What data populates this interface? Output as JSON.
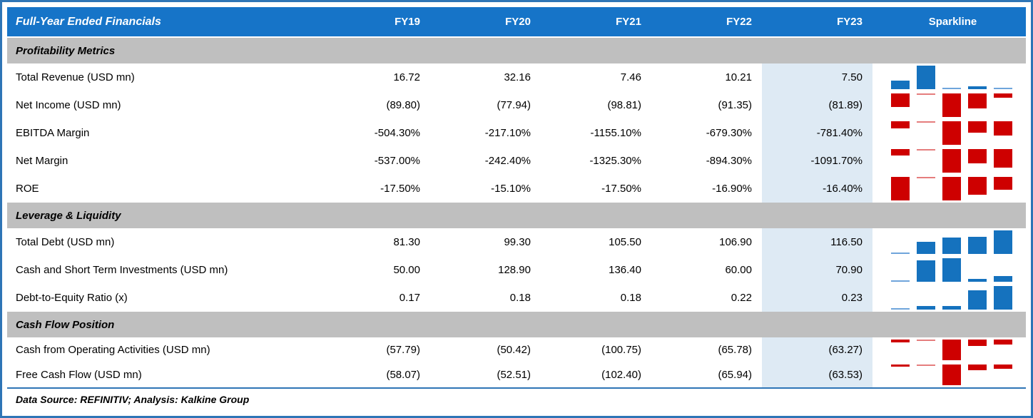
{
  "title": "Full-Year Ended Financials",
  "columns": [
    "FY19",
    "FY20",
    "FY21",
    "FY22",
    "FY23"
  ],
  "sparkline_header": "Sparkline",
  "highlight_column": "FY23",
  "sections": [
    {
      "title": "Profitability Metrics",
      "rows": [
        {
          "label": "Total Revenue (USD mn)",
          "values": [
            "16.72",
            "32.16",
            "7.46",
            "10.21",
            "7.50"
          ],
          "numeric": [
            16.72,
            32.16,
            7.46,
            10.21,
            7.5
          ]
        },
        {
          "label": "Net Income (USD mn)",
          "values": [
            "(89.80)",
            "(77.94)",
            "(98.81)",
            "(91.35)",
            "(81.89)"
          ],
          "numeric": [
            -89.8,
            -77.94,
            -98.81,
            -91.35,
            -81.89
          ]
        },
        {
          "label": "EBITDA Margin",
          "values": [
            "-504.30%",
            "-217.10%",
            "-1155.10%",
            "-679.30%",
            "-781.40%"
          ],
          "numeric": [
            -504.3,
            -217.1,
            -1155.1,
            -679.3,
            -781.4
          ]
        },
        {
          "label": "Net Margin",
          "values": [
            "-537.00%",
            "-242.40%",
            "-1325.30%",
            "-894.30%",
            "-1091.70%"
          ],
          "numeric": [
            -537.0,
            -242.4,
            -1325.3,
            -894.3,
            -1091.7
          ]
        },
        {
          "label": "ROE",
          "values": [
            "-17.50%",
            "-15.10%",
            "-17.50%",
            "-16.90%",
            "-16.40%"
          ],
          "numeric": [
            -17.5,
            -15.1,
            -17.5,
            -16.9,
            -16.4
          ]
        }
      ]
    },
    {
      "title": "Leverage & Liquidity",
      "rows": [
        {
          "label": "Total Debt (USD mn)",
          "values": [
            "81.30",
            "99.30",
            "105.50",
            "106.90",
            "116.50"
          ],
          "numeric": [
            81.3,
            99.3,
            105.5,
            106.9,
            116.5
          ]
        },
        {
          "label": "Cash and Short Term Investments (USD mn)",
          "values": [
            "50.00",
            "128.90",
            "136.40",
            "60.00",
            "70.90"
          ],
          "numeric": [
            50.0,
            128.9,
            136.4,
            60.0,
            70.9
          ]
        },
        {
          "label": "Debt-to-Equity Ratio (x)",
          "values": [
            "0.17",
            "0.18",
            "0.18",
            "0.22",
            "0.23"
          ],
          "numeric": [
            0.17,
            0.18,
            0.18,
            0.22,
            0.23
          ]
        }
      ]
    },
    {
      "title": "Cash Flow Position",
      "rows": [
        {
          "label": "Cash from Operating Activities (USD mn)",
          "values": [
            "(57.79)",
            "(50.42)",
            "(100.75)",
            "(65.78)",
            "(63.27)"
          ],
          "numeric": [
            -57.79,
            -50.42,
            -100.75,
            -65.78,
            -63.27
          ]
        },
        {
          "label": "Free Cash Flow (USD mn)",
          "values": [
            "(58.07)",
            "(52.51)",
            "(102.40)",
            "(65.94)",
            "(63.53)"
          ],
          "numeric": [
            -58.07,
            -52.51,
            -102.4,
            -65.94,
            -63.53
          ]
        }
      ]
    }
  ],
  "footer": "Data Source: REFINITIV; Analysis: Kalkine Group",
  "colors": {
    "frame_border": "#2E75B6",
    "header_bg": "#1674C8",
    "header_text": "#FFFFFF",
    "section_bg": "#BFBFBF",
    "highlight_bg": "#DEEAF4",
    "spark_positive": "#1572BE",
    "spark_negative": "#CE0000",
    "spark_positive_min": "#6FA5DB",
    "spark_negative_min": "#E57D7D"
  }
}
